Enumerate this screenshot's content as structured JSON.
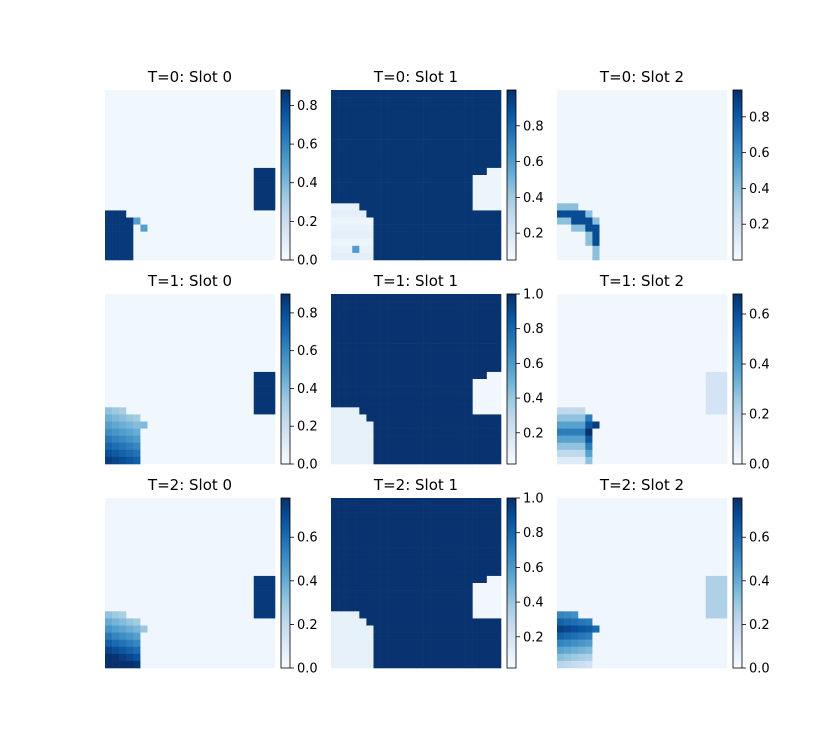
{
  "figure": {
    "cmap": "Blues",
    "colors": {
      "low": "#f7fbff",
      "mid": "#6baed6",
      "high": "#08306b"
    }
  },
  "chart_data": [
    {
      "type": "heatmap",
      "title": "T=0: Slot 0",
      "grid": [
        24,
        24
      ],
      "clim": [
        0,
        0.88
      ],
      "colorbar_ticks": [
        "0.0",
        "0.2",
        "0.4",
        "0.6",
        "0.8"
      ],
      "regions": [
        {
          "shape": "bottom-left blob",
          "rows": [
            17,
            23
          ],
          "cols": [
            0,
            4
          ],
          "value": 0.85
        },
        {
          "shape": "right-edge blob",
          "rows": [
            11,
            16
          ],
          "cols": [
            21,
            23
          ],
          "value": 0.85
        }
      ]
    },
    {
      "type": "heatmap",
      "title": "T=0: Slot 1",
      "grid": [
        24,
        24
      ],
      "clim": [
        0.05,
        1.0
      ],
      "colorbar_ticks": [
        "0.2",
        "0.4",
        "0.6",
        "0.8"
      ],
      "regions": [
        {
          "shape": "background",
          "value": 0.98
        },
        {
          "shape": "bottom-left hole",
          "rows": [
            16,
            23
          ],
          "cols": [
            0,
            5
          ],
          "value": 0.12
        },
        {
          "shape": "right-edge hole",
          "rows": [
            11,
            16
          ],
          "cols": [
            21,
            23
          ],
          "value": 0.1
        }
      ]
    },
    {
      "type": "heatmap",
      "title": "T=0: Slot 2",
      "grid": [
        24,
        24
      ],
      "clim": [
        0,
        0.95
      ],
      "colorbar_ticks": [
        "0.2",
        "0.4",
        "0.6",
        "0.8"
      ],
      "regions": [
        {
          "shape": "bottom-left arc",
          "rows": [
            16,
            23
          ],
          "cols": [
            0,
            5
          ],
          "value": 0.85
        }
      ]
    },
    {
      "type": "heatmap",
      "title": "T=1: Slot 0",
      "grid": [
        24,
        24
      ],
      "clim": [
        0,
        0.9
      ],
      "colorbar_ticks": [
        "0.0",
        "0.2",
        "0.4",
        "0.6",
        "0.8"
      ],
      "regions": [
        {
          "shape": "bottom-left gradient",
          "rows": [
            16,
            23
          ],
          "cols": [
            0,
            5
          ],
          "value": 0.6
        },
        {
          "shape": "right-edge blob",
          "rows": [
            11,
            16
          ],
          "cols": [
            21,
            23
          ],
          "value": 0.88
        }
      ]
    },
    {
      "type": "heatmap",
      "title": "T=1: Slot 1",
      "grid": [
        24,
        24
      ],
      "clim": [
        0.02,
        1.0
      ],
      "colorbar_ticks": [
        "0.2",
        "0.4",
        "0.6",
        "0.8",
        "1.0"
      ],
      "regions": [
        {
          "shape": "background",
          "value": 0.99
        },
        {
          "shape": "bottom-left hole",
          "rows": [
            16,
            23
          ],
          "cols": [
            0,
            5
          ],
          "value": 0.1
        },
        {
          "shape": "right-edge hole",
          "rows": [
            11,
            16
          ],
          "cols": [
            21,
            23
          ],
          "value": 0.05
        }
      ]
    },
    {
      "type": "heatmap",
      "title": "T=1: Slot 2",
      "grid": [
        24,
        24
      ],
      "clim": [
        0,
        0.68
      ],
      "colorbar_ticks": [
        "0.0",
        "0.2",
        "0.4",
        "0.6"
      ],
      "regions": [
        {
          "shape": "bottom-left gradient",
          "rows": [
            16,
            23
          ],
          "cols": [
            0,
            5
          ],
          "value": 0.45
        },
        {
          "shape": "right-edge faint",
          "rows": [
            11,
            16
          ],
          "cols": [
            21,
            23
          ],
          "value": 0.12
        }
      ]
    },
    {
      "type": "heatmap",
      "title": "T=2: Slot 0",
      "grid": [
        24,
        24
      ],
      "clim": [
        0,
        0.78
      ],
      "colorbar_ticks": [
        "0.0",
        "0.2",
        "0.4",
        "0.6"
      ],
      "regions": [
        {
          "shape": "bottom-left gradient",
          "rows": [
            16,
            23
          ],
          "cols": [
            0,
            5
          ],
          "value": 0.55
        },
        {
          "shape": "right-edge blob",
          "rows": [
            11,
            16
          ],
          "cols": [
            21,
            23
          ],
          "value": 0.75
        }
      ]
    },
    {
      "type": "heatmap",
      "title": "T=2: Slot 1",
      "grid": [
        24,
        24
      ],
      "clim": [
        0.02,
        1.0
      ],
      "colorbar_ticks": [
        "0.2",
        "0.4",
        "0.6",
        "0.8",
        "1.0"
      ],
      "regions": [
        {
          "shape": "background",
          "value": 0.99
        },
        {
          "shape": "bottom-left hole",
          "rows": [
            16,
            23
          ],
          "cols": [
            0,
            5
          ],
          "value": 0.1
        },
        {
          "shape": "right-edge hole",
          "rows": [
            11,
            16
          ],
          "cols": [
            21,
            23
          ],
          "value": 0.05
        }
      ]
    },
    {
      "type": "heatmap",
      "title": "T=2: Slot 2",
      "grid": [
        24,
        24
      ],
      "clim": [
        0,
        0.78
      ],
      "colorbar_ticks": [
        "0.0",
        "0.2",
        "0.4",
        "0.6"
      ],
      "regions": [
        {
          "shape": "bottom-left gradient",
          "rows": [
            16,
            23
          ],
          "cols": [
            0,
            5
          ],
          "value": 0.55
        },
        {
          "shape": "right-edge faint",
          "rows": [
            11,
            16
          ],
          "cols": [
            21,
            23
          ],
          "value": 0.25
        }
      ]
    }
  ]
}
